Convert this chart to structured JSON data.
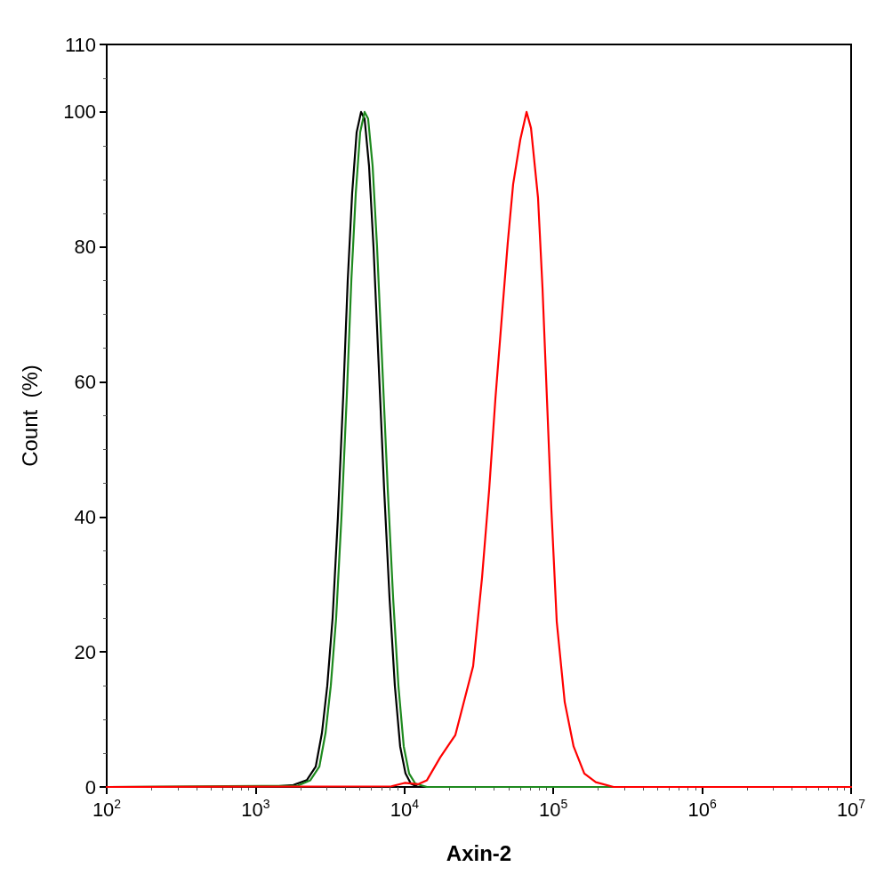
{
  "chart_data": {
    "type": "line",
    "xlabel": "Axin-2",
    "ylabel": "Count  (%)",
    "log": "x",
    "xlim": [
      100,
      10000000
    ],
    "xticks": [
      {
        "value": 100,
        "label": "10$^{2}$"
      },
      {
        "value": 1000,
        "label": "10$^{3}$"
      },
      {
        "value": 10000,
        "label": "10$^{4}$"
      },
      {
        "value": 100000,
        "label": "10$^{5}$"
      },
      {
        "value": 1000000,
        "label": "10$^{6}$"
      },
      {
        "value": 10000000,
        "label": "10$^{7}$"
      }
    ],
    "ylim": [
      0,
      110
    ],
    "yticks": [
      0,
      20,
      40,
      60,
      80,
      100,
      110
    ],
    "grid": false,
    "marker": "none",
    "line_style": "solid",
    "series": [
      {
        "color": "#000000",
        "x": [
          100,
          1190,
          1795,
          2208,
          2534,
          2790,
          3030,
          3290,
          3573,
          3880,
          4157,
          4454,
          4773,
          5110,
          5397,
          5782,
          6195,
          6728,
          7305,
          7937,
          8617,
          9356,
          10160,
          11040,
          12320,
          10000000
        ],
        "values": [
          0,
          0,
          0.3,
          1,
          3,
          8,
          15,
          25,
          40,
          58,
          75,
          88,
          97,
          100,
          99,
          92,
          80,
          62,
          44,
          28,
          15,
          6,
          2,
          0.5,
          0,
          0
        ]
      },
      {
        "color": "#1e8a1e",
        "x": [
          100,
          1922,
          2333,
          2680,
          2950,
          3200,
          3475,
          3774,
          4100,
          4395,
          4710,
          5040,
          5397,
          5700,
          6110,
          6545,
          7110,
          7725,
          8390,
          9105,
          9890,
          10740,
          11830,
          14160,
          10000000
        ],
        "values": [
          0,
          0.2,
          1,
          3,
          8,
          15,
          25,
          40,
          58,
          75,
          88,
          97,
          100,
          99,
          92,
          80,
          62,
          44,
          28,
          15,
          6,
          2,
          0.5,
          0,
          0
        ]
      },
      {
        "color": "#ff0000",
        "x": [
          100,
          8166,
          10020,
          12320,
          14160,
          17400,
          21970,
          28920,
          33190,
          37050,
          40810,
          45520,
          49440,
          53700,
          59980,
          66070,
          70790,
          78890,
          84530,
          90580,
          97060,
          105400,
          119200,
          136800,
          161400,
          192900,
          254000,
          10000000
        ],
        "values": [
          0,
          0.1,
          0.6,
          0.4,
          1,
          4.4,
          7.7,
          17.9,
          31,
          44,
          57.5,
          70.8,
          80.7,
          89.3,
          95.9,
          100,
          97.6,
          87.3,
          74,
          57.5,
          41,
          24.5,
          12.6,
          6,
          2,
          0.7,
          0,
          0
        ]
      }
    ]
  }
}
